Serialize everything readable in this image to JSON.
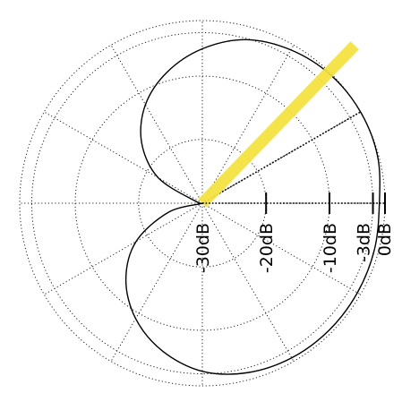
{
  "chart_data": {
    "type": "polar",
    "title": "",
    "radial_unit": "dB",
    "radial_scale": "loudspeaker-dB",
    "radial_ticks": [
      {
        "db": -30,
        "label": "-30dB"
      },
      {
        "db": -20,
        "label": "-20dB"
      },
      {
        "db": -10,
        "label": "-10dB"
      },
      {
        "db": -3,
        "label": "-3dB"
      },
      {
        "db": 0,
        "label": "0dB"
      }
    ],
    "angular_grid_step_deg": 30,
    "grid": true,
    "grid_style": "dotted",
    "series": [
      {
        "type": "polar-line",
        "color": "#000000",
        "points": [
          {
            "angle_deg": 0,
            "db": -1.4
          },
          {
            "angle_deg": 15,
            "db": -0.3
          },
          {
            "angle_deg": 30,
            "db": 0
          },
          {
            "angle_deg": 45,
            "db": -0.3
          },
          {
            "angle_deg": 60,
            "db": -1.4
          },
          {
            "angle_deg": 75,
            "db": -3.2
          },
          {
            "angle_deg": 90,
            "db": -5.6
          },
          {
            "angle_deg": 105,
            "db": -8.6
          },
          {
            "angle_deg": 120,
            "db": -12.1
          },
          {
            "angle_deg": 135,
            "db": -16.5
          },
          {
            "angle_deg": 150,
            "db": -22.0
          },
          {
            "angle_deg": 165,
            "db": -29.0
          },
          {
            "angle_deg": 180,
            "db": -38.0
          },
          {
            "angle_deg": -165,
            "db": -24.5
          },
          {
            "angle_deg": -150,
            "db": -18.0
          },
          {
            "angle_deg": -135,
            "db": -13.0
          },
          {
            "angle_deg": -120,
            "db": -9.0
          },
          {
            "angle_deg": -105,
            "db": -5.8
          },
          {
            "angle_deg": -90,
            "db": -3.4
          },
          {
            "angle_deg": -75,
            "db": -1.8
          },
          {
            "angle_deg": -60,
            "db": -1.0
          },
          {
            "angle_deg": -45,
            "db": -0.8
          },
          {
            "angle_deg": -30,
            "db": -0.9
          },
          {
            "angle_deg": -15,
            "db": -1.1
          }
        ]
      }
    ],
    "reference_lines": [
      {
        "type": "dotted",
        "angle_deg": 30
      }
    ],
    "highlight_ray": {
      "color": "#f5e23a",
      "angle_deg": 46
    }
  }
}
